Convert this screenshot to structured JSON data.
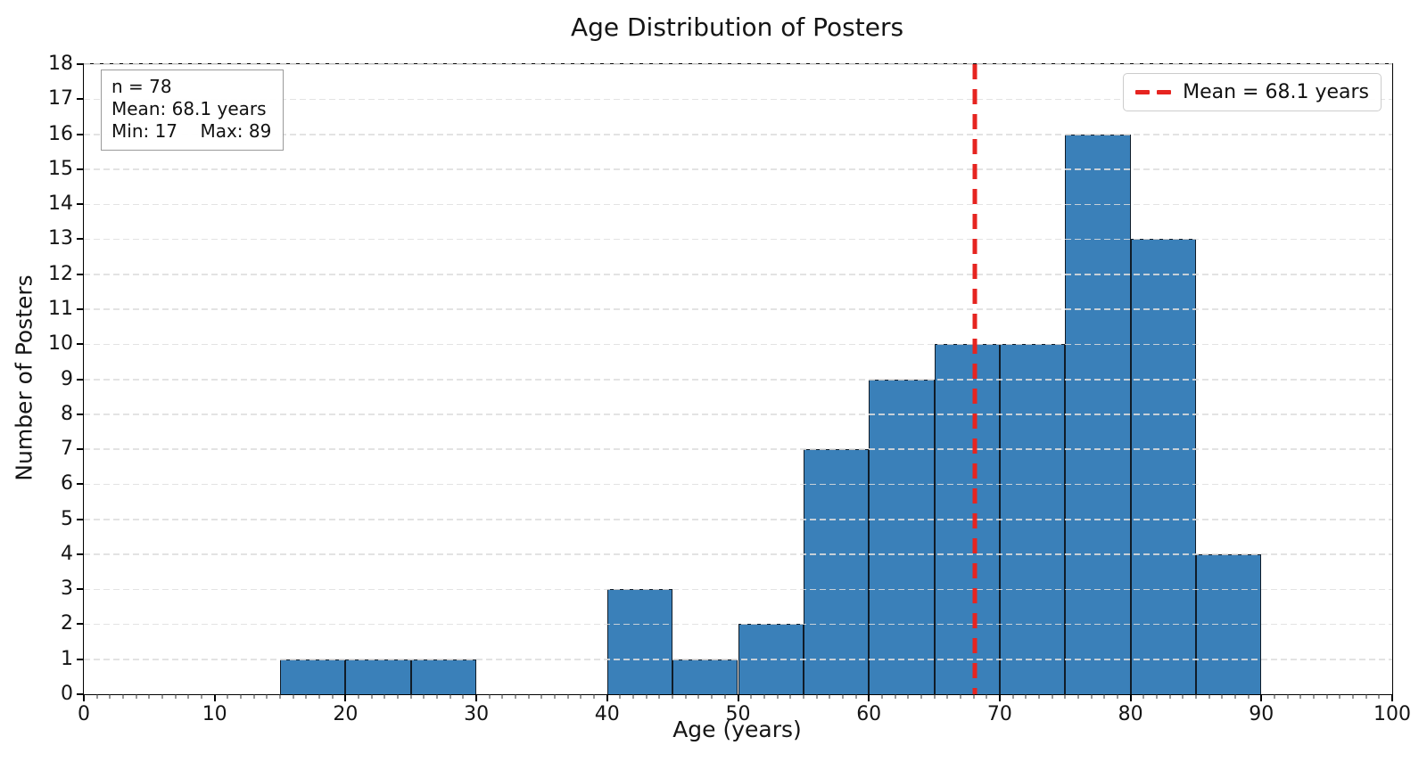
{
  "chart_data": {
    "type": "bar",
    "subtype": "histogram",
    "title": "Age Distribution of Posters",
    "xlabel": "Age (years)",
    "ylabel": "Number of Posters",
    "xlim": [
      0,
      100
    ],
    "ylim": [
      0,
      18
    ],
    "x_major_ticks": [
      0,
      10,
      20,
      30,
      40,
      50,
      60,
      70,
      80,
      90,
      100
    ],
    "x_minor_tick_step": 1,
    "y_ticks": [
      0,
      1,
      2,
      3,
      4,
      5,
      6,
      7,
      8,
      9,
      10,
      11,
      12,
      13,
      14,
      15,
      16,
      17,
      18
    ],
    "bin_width": 5,
    "bins": [
      {
        "start": 15,
        "end": 20,
        "count": 1
      },
      {
        "start": 20,
        "end": 25,
        "count": 1
      },
      {
        "start": 25,
        "end": 30,
        "count": 1
      },
      {
        "start": 40,
        "end": 45,
        "count": 3
      },
      {
        "start": 45,
        "end": 50,
        "count": 1
      },
      {
        "start": 50,
        "end": 55,
        "count": 2
      },
      {
        "start": 55,
        "end": 60,
        "count": 7
      },
      {
        "start": 60,
        "end": 65,
        "count": 9
      },
      {
        "start": 65,
        "end": 70,
        "count": 10
      },
      {
        "start": 70,
        "end": 75,
        "count": 10
      },
      {
        "start": 75,
        "end": 80,
        "count": 16
      },
      {
        "start": 80,
        "end": 85,
        "count": 13
      },
      {
        "start": 85,
        "end": 90,
        "count": 4
      }
    ],
    "n": 78,
    "mean": 68.1,
    "min": 17,
    "max": 89,
    "mean_line": {
      "x": 68.1,
      "label": "Mean = 68.1 years",
      "style": "dashed"
    },
    "grid": {
      "axis": "y",
      "style": "dashed"
    },
    "legend": {
      "position": "upper right",
      "entries": [
        {
          "label": "Mean = 68.1 years",
          "swatch": "red-dashed-line"
        }
      ]
    },
    "stats_box": {
      "lines": [
        "n = 78",
        "Mean: 68.1 years",
        "Min: 17    Max: 89"
      ]
    },
    "colors": {
      "bar_fill": "#3a80b9",
      "bar_edge": "#101c28",
      "mean_line": "#e62420",
      "grid": "#dedede",
      "spine": "#000000"
    }
  }
}
